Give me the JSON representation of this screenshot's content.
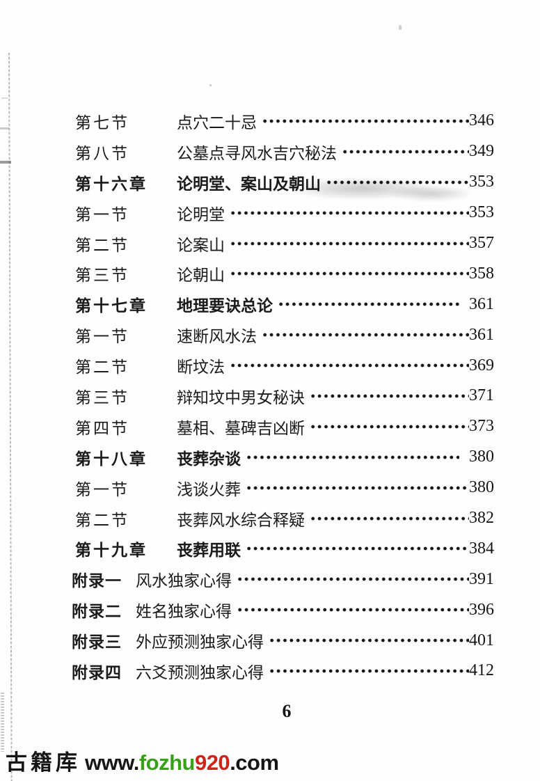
{
  "toc": {
    "rows": [
      {
        "label": "第七节",
        "title": "点穴二十忌",
        "page": "346",
        "type": "section"
      },
      {
        "label": "第八节",
        "title": "公墓点寻风水吉穴秘法",
        "page": "349",
        "type": "section"
      },
      {
        "label": "第十六章",
        "title": "论明堂、案山及朝山",
        "page": "353",
        "type": "chapter"
      },
      {
        "label": "第一节",
        "title": "论明堂",
        "page": "353",
        "type": "section"
      },
      {
        "label": "第二节",
        "title": "论案山",
        "page": "357",
        "type": "section"
      },
      {
        "label": "第三节",
        "title": "论朝山",
        "page": "358",
        "type": "section"
      },
      {
        "label": "第十七章",
        "title": "地理要诀总论",
        "page": "361",
        "type": "chapter",
        "space_before_page": true
      },
      {
        "label": "第一节",
        "title": "速断风水法",
        "page": "361",
        "type": "section"
      },
      {
        "label": "第二节",
        "title": "断坟法",
        "page": "369",
        "type": "section"
      },
      {
        "label": "第三节",
        "title": "辩知坟中男女秘诀",
        "page": "371",
        "type": "section"
      },
      {
        "label": "第四节",
        "title": "墓相、墓碑吉凶断",
        "page": "373",
        "type": "section"
      },
      {
        "label": "第十八章",
        "title": "丧葬杂谈",
        "page": "380",
        "type": "chapter",
        "space_before_page": true
      },
      {
        "label": "第一节",
        "title": "浅谈火葬",
        "page": "380",
        "type": "section"
      },
      {
        "label": "第二节",
        "title": "丧葬风水综合释疑",
        "page": "382",
        "type": "section"
      },
      {
        "label": "第十九章",
        "title": "丧葬用联",
        "page": "384",
        "type": "chapter"
      },
      {
        "label": "附录一",
        "title": "风水独家心得",
        "page": "391",
        "type": "appendix"
      },
      {
        "label": "附录二",
        "title": "姓名独家心得",
        "page": "396",
        "type": "appendix"
      },
      {
        "label": "附录三",
        "title": "外应预测独家心得",
        "page": "401",
        "type": "appendix"
      },
      {
        "label": "附录四",
        "title": "六爻预测独家心得",
        "page": "412",
        "type": "appendix"
      }
    ]
  },
  "footer": {
    "page_number": "6"
  },
  "watermark": {
    "site_name": "古籍库",
    "url_www": "www.",
    "url_green": "fozhu",
    "url_red": "920",
    "url_tld": ".com",
    "green_color": "#38a118",
    "red_color": "#cf2419"
  }
}
